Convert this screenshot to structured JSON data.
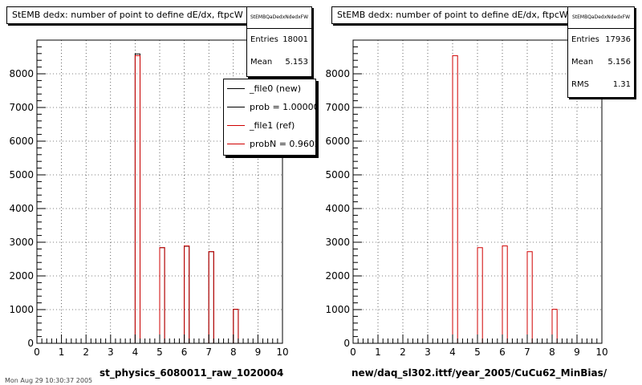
{
  "chart_data": [
    {
      "type": "bar",
      "title": "StEMB dedx: number of point to define dE/dx, ftpcW",
      "xlabel": "st_physics_6080011_raw_1020004",
      "ylabel": "",
      "xlim": [
        0,
        10
      ],
      "ylim": [
        0,
        9000
      ],
      "x_ticks": [
        "0",
        "1",
        "2",
        "3",
        "4",
        "5",
        "6",
        "7",
        "8",
        "9",
        "10"
      ],
      "y_ticks": [
        "0",
        "1000",
        "2000",
        "3000",
        "4000",
        "5000",
        "6000",
        "7000",
        "8000"
      ],
      "grid": true,
      "bin_width": 0.2,
      "series": [
        {
          "name": "_file0 (new)",
          "color": "#000000",
          "bins": [
            {
              "x": 4.0,
              "y": 8590
            },
            {
              "x": 5.0,
              "y": 2840
            },
            {
              "x": 6.0,
              "y": 2880
            },
            {
              "x": 7.0,
              "y": 2720
            },
            {
              "x": 8.0,
              "y": 1010
            }
          ]
        },
        {
          "name": "_file1 (ref)",
          "color": "#d00000",
          "bins": [
            {
              "x": 4.0,
              "y": 8540
            },
            {
              "x": 5.0,
              "y": 2840
            },
            {
              "x": 6.0,
              "y": 2890
            },
            {
              "x": 7.0,
              "y": 2720
            },
            {
              "x": 8.0,
              "y": 1010
            }
          ]
        }
      ],
      "stats": {
        "header": "StEMBQaDedxNdedxFW",
        "entries": "18001",
        "mean": "5.153",
        "rms": ""
      },
      "legend": {
        "entries": [
          "_file0 (new)",
          "prob = 1.000000",
          "_file1 (ref)",
          "probN = 0.960261"
        ],
        "placement": "top-right"
      }
    },
    {
      "type": "bar",
      "title": "StEMB dedx: number of point to define dE/dx, ftpcW",
      "xlabel": "new/daq_sl302.ittf/year_2005/CuCu62_MinBias/",
      "ylabel": "",
      "xlim": [
        0,
        10
      ],
      "ylim": [
        0,
        9000
      ],
      "x_ticks": [
        "0",
        "1",
        "2",
        "3",
        "4",
        "5",
        "6",
        "7",
        "8",
        "9",
        "10"
      ],
      "y_ticks": [
        "0",
        "1000",
        "2000",
        "3000",
        "4000",
        "5000",
        "6000",
        "7000",
        "8000"
      ],
      "grid": true,
      "bin_width": 0.2,
      "series": [
        {
          "color": "#d00000",
          "bins": [
            {
              "x": 4.0,
              "y": 8540
            },
            {
              "x": 5.0,
              "y": 2840
            },
            {
              "x": 6.0,
              "y": 2890
            },
            {
              "x": 7.0,
              "y": 2720
            },
            {
              "x": 8.0,
              "y": 1010
            }
          ]
        }
      ],
      "stats": {
        "header": "StEMBQaDedxNdedxFW",
        "entries": "17936",
        "mean": "5.156",
        "rms": "1.31"
      }
    }
  ],
  "footer": "Mon Aug 29 10:30:37 2005"
}
